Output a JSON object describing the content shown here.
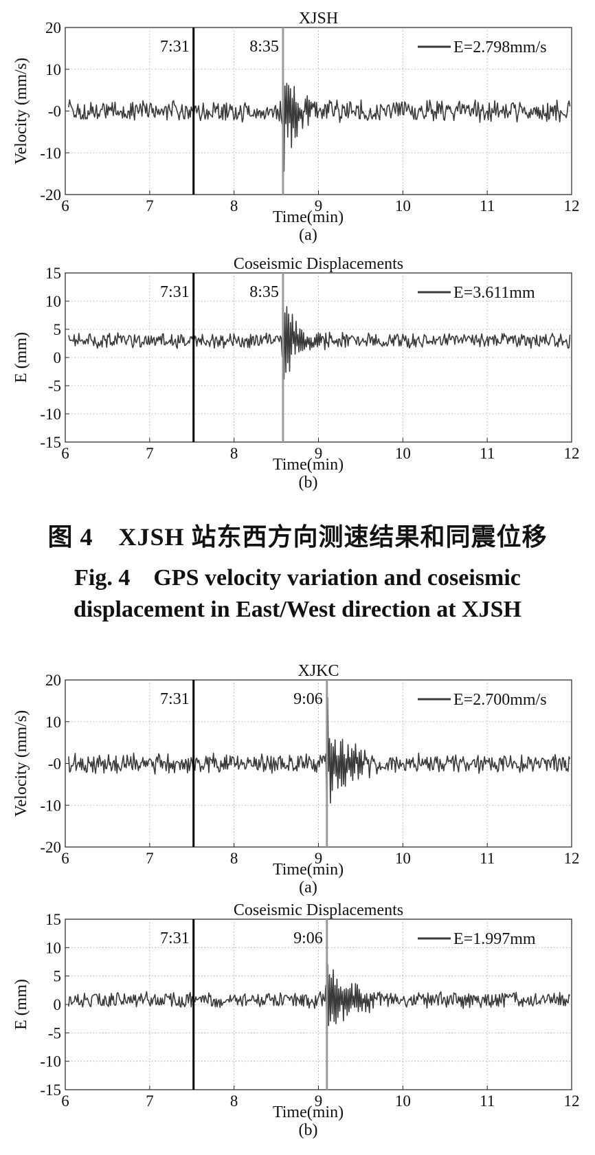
{
  "figure_caption": {
    "cn": "图 4　XJSH 站东西方向测速结果和同震位移",
    "en_line1": "Fig. 4　GPS velocity variation and coseismic",
    "en_line2": "displacement in East/West direction at XJSH"
  },
  "colors": {
    "trace": "#3a3a3a",
    "marker_first": "#000000",
    "marker_second": "#9a9a9a",
    "grid": "#9a9a9a"
  },
  "chart_data": [
    {
      "type": "line",
      "title": "XJSH",
      "xlabel": "Time(min)",
      "ylabel": "Velocity (mm/s)",
      "sublabel": "(a)",
      "xlim": [
        6,
        12
      ],
      "ylim": [
        -20,
        20
      ],
      "xticks": [
        "6",
        "7",
        "8",
        "9",
        "10",
        "11",
        "12"
      ],
      "yticks": [
        "20",
        "10",
        "-0",
        "-10",
        "-20"
      ],
      "grid": true,
      "legend": {
        "label": "E=2.798mm/s",
        "position": "top-right"
      },
      "markers": [
        {
          "label": "7:31",
          "x": 7.52,
          "style": "black"
        },
        {
          "label": "8:35",
          "x": 8.58,
          "style": "gray"
        }
      ],
      "series": [
        {
          "name": "E=2.798mm/s",
          "baseline": 0,
          "noise": 2.8,
          "event_x": 8.58,
          "event_amp": 13.5,
          "event_decay": 0.18
        }
      ]
    },
    {
      "type": "line",
      "title": "Coseismic Displacements",
      "xlabel": "Time(min)",
      "ylabel": "E (mm)",
      "sublabel": "(b)",
      "xlim": [
        6,
        12
      ],
      "ylim": [
        -15,
        15
      ],
      "xticks": [
        "6",
        "7",
        "8",
        "9",
        "10",
        "11",
        "12"
      ],
      "yticks": [
        "15",
        "10",
        "5",
        "0",
        "-5",
        "-10",
        "-15"
      ],
      "grid": true,
      "legend": {
        "label": "E=3.611mm",
        "position": "top-right"
      },
      "markers": [
        {
          "label": "7:31",
          "x": 7.52,
          "style": "black"
        },
        {
          "label": "8:35",
          "x": 8.58,
          "style": "gray"
        }
      ],
      "series": [
        {
          "name": "E=3.611mm",
          "baseline": 3,
          "noise": 1.5,
          "event_x": 8.58,
          "event_amp": 7.5,
          "event_decay": 0.2
        }
      ]
    },
    {
      "type": "line",
      "title": "XJKC",
      "xlabel": "Time(min)",
      "ylabel": "Velocity (mm/s)",
      "sublabel": "(a)",
      "xlim": [
        6,
        12
      ],
      "ylim": [
        -20,
        20
      ],
      "xticks": [
        "6",
        "7",
        "8",
        "9",
        "10",
        "11",
        "12"
      ],
      "yticks": [
        "20",
        "10",
        "-0",
        "-10",
        "-20"
      ],
      "grid": true,
      "legend": {
        "label": "E=2.700mm/s",
        "position": "top-right"
      },
      "markers": [
        {
          "label": "7:31",
          "x": 7.52,
          "style": "black"
        },
        {
          "label": "9:06",
          "x": 9.1,
          "style": "gray"
        }
      ],
      "series": [
        {
          "name": "E=2.700mm/s",
          "baseline": 0,
          "noise": 2.7,
          "event_x": 9.1,
          "event_amp": 11,
          "event_decay": 0.25
        }
      ]
    },
    {
      "type": "line",
      "title": "Coseismic Displacements",
      "xlabel": "Time(min)",
      "ylabel": "E (mm)",
      "sublabel": "(b)",
      "xlim": [
        6,
        12
      ],
      "ylim": [
        -15,
        15
      ],
      "xticks": [
        "6",
        "7",
        "8",
        "9",
        "10",
        "11",
        "12"
      ],
      "yticks": [
        "15",
        "10",
        "5",
        "0",
        "-5",
        "-10",
        "-15"
      ],
      "grid": true,
      "legend": {
        "label": "E=1.997mm",
        "position": "top-right"
      },
      "markers": [
        {
          "label": "7:31",
          "x": 7.52,
          "style": "black"
        },
        {
          "label": "9:06",
          "x": 9.1,
          "style": "gray"
        }
      ],
      "series": [
        {
          "name": "E=1.997mm",
          "baseline": 0.8,
          "noise": 1.6,
          "event_x": 9.1,
          "event_amp": 8,
          "event_decay": 0.25
        }
      ]
    }
  ]
}
